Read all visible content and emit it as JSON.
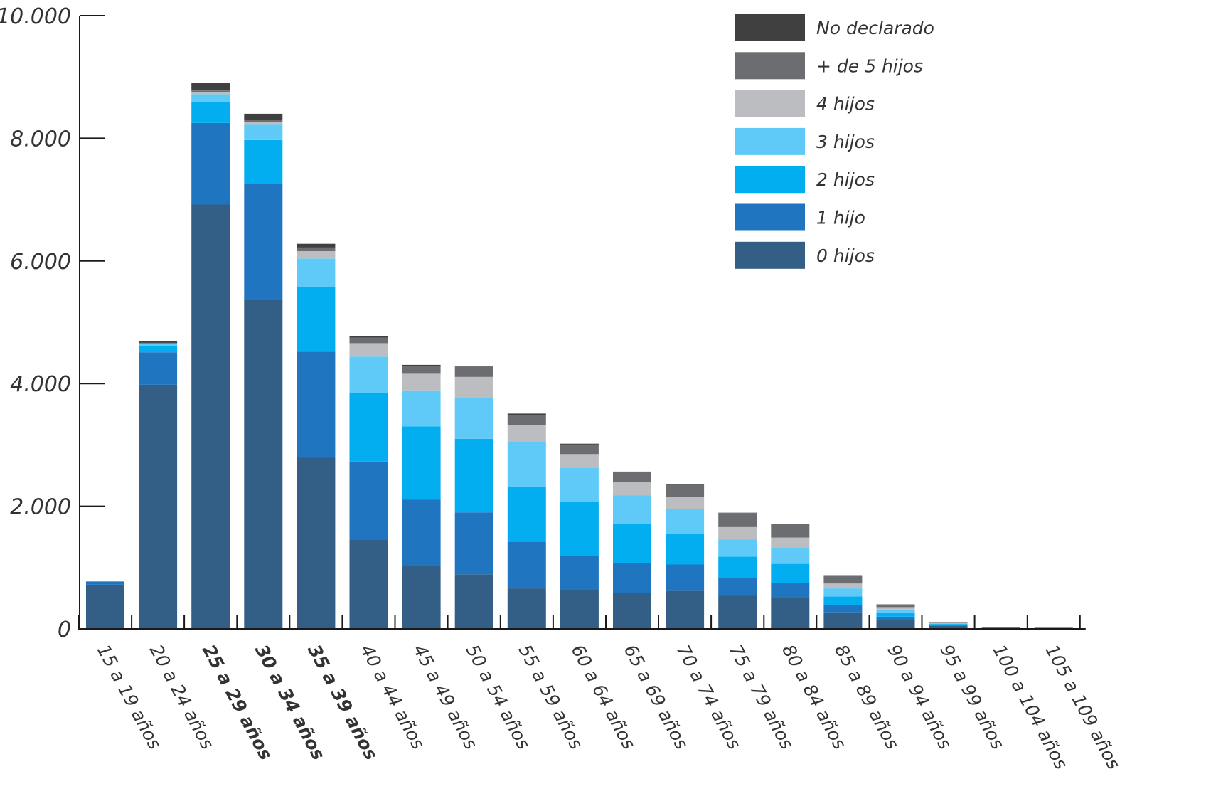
{
  "chart_data": {
    "type": "bar",
    "stacked": true,
    "ylim": [
      0,
      10000
    ],
    "yticks": [
      "0",
      "2.000",
      "4.000",
      "6.000",
      "8.000",
      "10.000"
    ],
    "ytick_values": [
      0,
      2000,
      4000,
      6000,
      8000,
      10000
    ],
    "grid": false,
    "legend_position": "top-right",
    "highlight_color": "#1aa3e0",
    "categories": [
      "15 a 19 años",
      "20 a 24 años",
      "25 a 29 años",
      "30 a 34 años",
      "35 a 39 años",
      "40 a 44 años",
      "45 a 49 años",
      "50 a 54 años",
      "55 a 59 años",
      "60 a 64 años",
      "65 a 69 años",
      "70 a 74 años",
      "75 a 79 años",
      "80 a 84 años",
      "85 a 89 años",
      "90 a 94 años",
      "95 a 99 años",
      "100 a 104 años",
      "105 a 109 años"
    ],
    "highlighted_categories": [
      "25 a 29 años",
      "30 a 34 años",
      "35 a 39 años"
    ],
    "series": [
      {
        "name": "0 hijos",
        "color": "#335e85",
        "values": [
          720,
          3980,
          6920,
          5380,
          2790,
          1450,
          1030,
          890,
          660,
          630,
          590,
          620,
          540,
          500,
          270,
          150,
          50,
          20,
          15
        ]
      },
      {
        "name": "1 hijo",
        "color": "#1f75bf",
        "values": [
          50,
          530,
          1330,
          1880,
          1730,
          1280,
          1080,
          1010,
          760,
          570,
          480,
          430,
          300,
          250,
          120,
          50,
          15,
          5,
          3
        ]
      },
      {
        "name": "2 hijos",
        "color": "#03aef0",
        "values": [
          5,
          100,
          350,
          710,
          1060,
          1120,
          1190,
          1200,
          900,
          870,
          640,
          500,
          340,
          310,
          140,
          60,
          15,
          3,
          2
        ]
      },
      {
        "name": "3 hijos",
        "color": "#5fcaf7",
        "values": [
          2,
          30,
          120,
          250,
          460,
          590,
          590,
          680,
          720,
          560,
          470,
          400,
          280,
          260,
          130,
          55,
          10,
          2,
          1
        ]
      },
      {
        "name": "4 hijos",
        "color": "#bcbdc0",
        "values": [
          1,
          15,
          30,
          40,
          120,
          220,
          270,
          330,
          280,
          220,
          220,
          200,
          200,
          170,
          80,
          40,
          5,
          1,
          1
        ]
      },
      {
        "name": "+ de 5 hijos",
        "color": "#6c6d70",
        "values": [
          1,
          10,
          30,
          40,
          60,
          90,
          130,
          170,
          170,
          160,
          160,
          200,
          230,
          220,
          130,
          40,
          5,
          1,
          1
        ]
      },
      {
        "name": "No declarado",
        "color": "#404041",
        "values": [
          2,
          30,
          120,
          100,
          60,
          30,
          15,
          10,
          20,
          10,
          5,
          5,
          5,
          5,
          5,
          5,
          2,
          1,
          1
        ]
      }
    ]
  }
}
